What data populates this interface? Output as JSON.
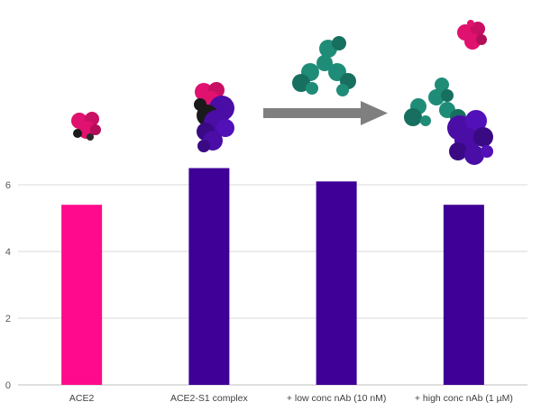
{
  "chart_data": {
    "type": "bar",
    "categories": [
      "ACE2",
      "ACE2-S1 complex",
      "+ low conc nAb (10 nM)",
      "+ high conc nAb (1 µM)"
    ],
    "values": [
      5.4,
      6.5,
      6.1,
      5.4
    ],
    "bar_colors": [
      "#FF0A8C",
      "#3E0096",
      "#3E0096",
      "#3E0096"
    ],
    "yticks": [
      0,
      2,
      4,
      6
    ],
    "ylim": [
      0,
      7
    ],
    "grid": true,
    "legend": "none",
    "title": "",
    "xlabel": "",
    "ylabel": ""
  },
  "illustrations": [
    {
      "icon": "ace2-protein-icon",
      "colors": [
        "#E0116F",
        "#1A1A1A"
      ]
    },
    {
      "icon": "ace2-s1-complex-icon",
      "colors": [
        "#E0116F",
        "#4A0DA6",
        "#1A1A1A"
      ]
    },
    {
      "icon": "arrow-right-icon",
      "colors": [
        "#808080"
      ]
    },
    {
      "icon": "antibody-icon",
      "colors": [
        "#1F8C78"
      ]
    },
    {
      "icon": "ace2-protein-icon",
      "colors": [
        "#E0116F"
      ]
    },
    {
      "icon": "antibody-s1-complex-icon",
      "colors": [
        "#1F8C78",
        "#4A0DA6"
      ]
    }
  ]
}
